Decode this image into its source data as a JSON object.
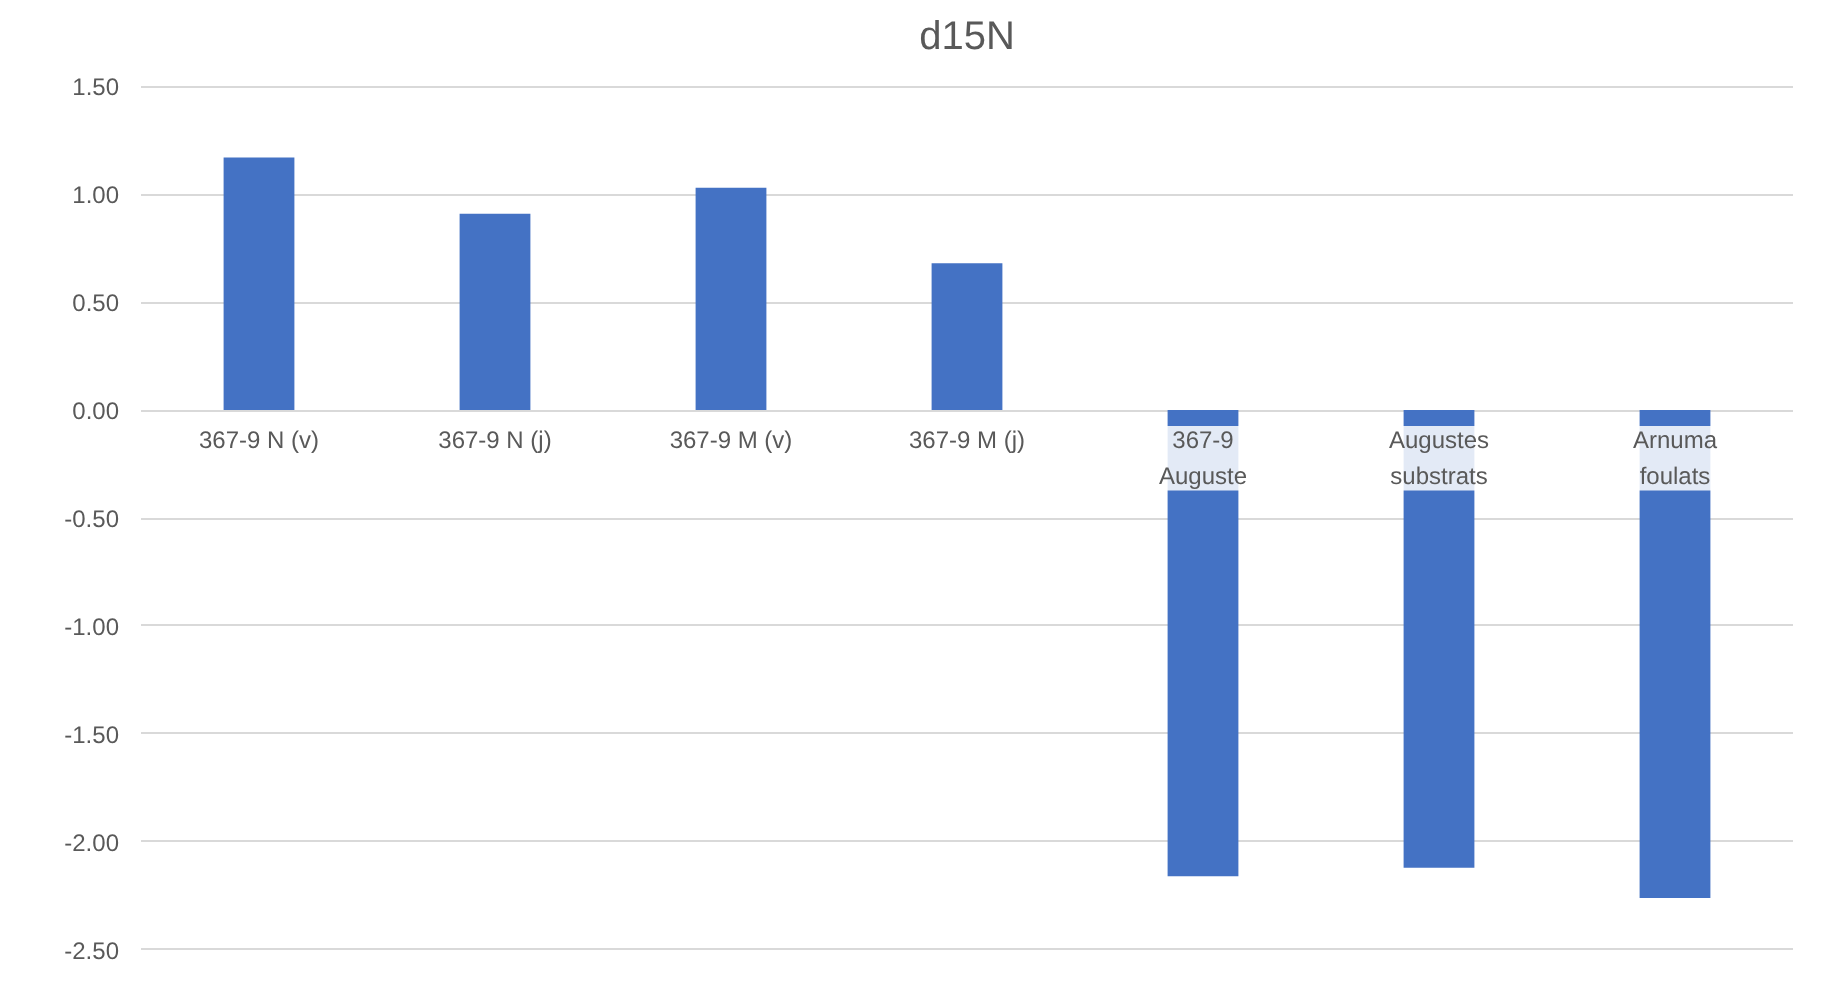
{
  "chart_data": {
    "type": "bar",
    "title": "d15N",
    "categories": [
      "367-9 N (v)",
      "367-9 N (j)",
      "367-9 M (v)",
      "367-9 M (j)",
      "367-9 Auguste",
      "Augustes substrats",
      "Arnuma foulats"
    ],
    "values": [
      1.17,
      0.91,
      1.03,
      0.68,
      -2.16,
      -2.12,
      -2.26
    ],
    "color": "#4472c4",
    "ylim": [
      -2.5,
      1.5
    ],
    "yticks": [
      {
        "value": -2.5,
        "label": "-2.50"
      },
      {
        "value": -2.0,
        "label": "-2.00"
      },
      {
        "value": -1.5,
        "label": "-1.50"
      },
      {
        "value": -1.0,
        "label": "-1.00"
      },
      {
        "value": -0.5,
        "label": "-0.50"
      },
      {
        "value": 0,
        "label": "0.00"
      },
      {
        "value": 0.5,
        "label": "0.50"
      },
      {
        "value": 1.0,
        "label": "1.00"
      },
      {
        "value": 1.5,
        "label": "1.50"
      }
    ],
    "grid": "y"
  }
}
